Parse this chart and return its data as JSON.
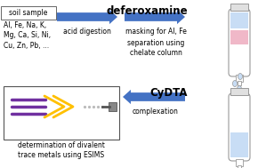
{
  "bg_color": "#ffffff",
  "arrow_color": "#4472c4",
  "soil_box_text": "soil sample",
  "soil_elements": "Al, Fe, Na, K,\nMg, Ca, Si, Ni,\nCu, Zn, Pb, ...",
  "label_acid": "acid digestion",
  "label_masking": "masking for Al, Fe",
  "label_separation": "separation using\nchelate column",
  "label_complexation": "complexation",
  "label_determination": "determination of divalent\ntrace metals using ESIMS",
  "title_deferoxamine": "deferoxamine",
  "title_cydta": "CyDTA",
  "tube_top_color": "#c8ddf5",
  "tube_mid_color": "#f0b8c8",
  "tube2_color": "#c8ddf5",
  "purple_color": "#7030a0",
  "gold_color": "#ffc000",
  "text_fontsize": 6.0,
  "title_fontsize": 8.5,
  "small_fontsize": 5.5
}
